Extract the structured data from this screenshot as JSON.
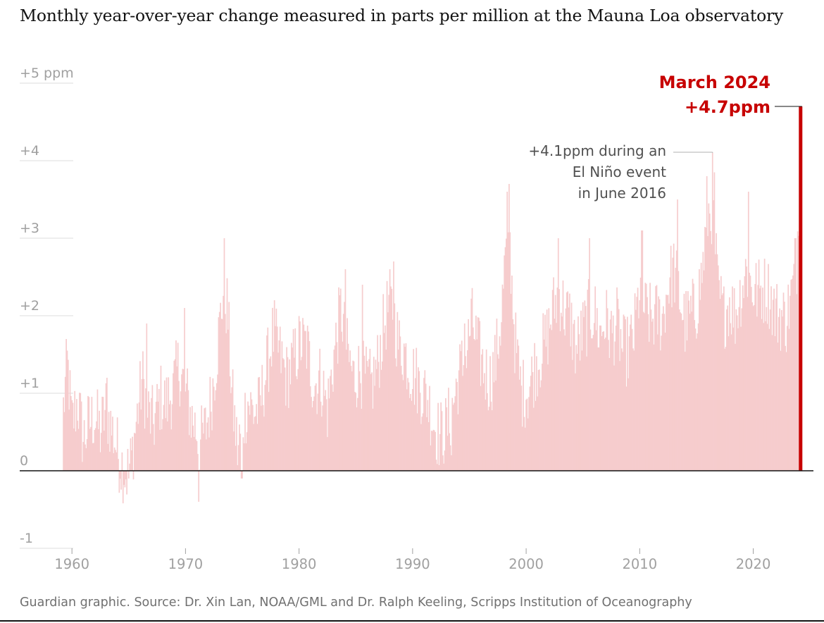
{
  "title": "Monthly year-over-year change measured in parts per million at the Mauna Loa observatory",
  "source": "Guardian graphic. Source: Dr. Xin Lan, NOAA/GML and Dr. Ralph Keeling, Scripps Institution of Oceanography",
  "colors": {
    "bar": "#f6cccd",
    "highlight": "#c70000",
    "grid": "#dcdcdc",
    "axis": "#121212",
    "tick_text": "#a0a0a0",
    "annotation_text": "#505050"
  },
  "chart_data": {
    "type": "bar",
    "title": "Monthly year-over-year change measured in parts per million at the Mauna Loa observatory",
    "xlabel": "",
    "ylabel": "",
    "xlim": [
      1955.4,
      2025.3
    ],
    "ylim": [
      -1,
      5
    ],
    "grid": true,
    "x_ticks": [
      1960,
      1970,
      1980,
      1990,
      2000,
      2010,
      2020
    ],
    "x_tick_labels": [
      "1960",
      "1970",
      "1980",
      "1990",
      "2000",
      "2010",
      "2020"
    ],
    "y_ticks": [
      5,
      4,
      3,
      2,
      1,
      0,
      -1
    ],
    "y_tick_labels": [
      "+5 ppm",
      "+4",
      "+3",
      "+2",
      "+1",
      "0",
      "-1"
    ],
    "x_start": 1959.25,
    "x_step": 0.08333,
    "keypoints": [
      [
        1959.25,
        0.8
      ],
      [
        1959.6,
        1.4
      ],
      [
        1960.0,
        0.6
      ],
      [
        1960.5,
        0.9
      ],
      [
        1961.0,
        0.4
      ],
      [
        1961.5,
        0.6
      ],
      [
        1962.0,
        0.7
      ],
      [
        1962.5,
        0.5
      ],
      [
        1963.0,
        0.8
      ],
      [
        1963.6,
        0.5
      ],
      [
        1964.2,
        0.15
      ],
      [
        1964.8,
        -0.05
      ],
      [
        1965.2,
        0.1
      ],
      [
        1965.6,
        0.55
      ],
      [
        1966.2,
        1.2
      ],
      [
        1966.7,
        0.75
      ],
      [
        1967.2,
        0.6
      ],
      [
        1967.8,
        0.95
      ],
      [
        1968.3,
        0.85
      ],
      [
        1968.9,
        1.05
      ],
      [
        1969.4,
        1.35
      ],
      [
        1969.9,
        1.1
      ],
      [
        1970.5,
        0.7
      ],
      [
        1970.9,
        0.55
      ],
      [
        1971.3,
        0.35
      ],
      [
        1971.8,
        0.55
      ],
      [
        1972.3,
        0.95
      ],
      [
        1972.8,
        1.55
      ],
      [
        1973.3,
        2.3
      ],
      [
        1973.7,
        2.1
      ],
      [
        1974.1,
        0.95
      ],
      [
        1974.6,
        0.25
      ],
      [
        1975.0,
        0.6
      ],
      [
        1975.5,
        0.9
      ],
      [
        1976.0,
        0.75
      ],
      [
        1976.5,
        0.8
      ],
      [
        1977.0,
        1.2
      ],
      [
        1977.7,
        1.75
      ],
      [
        1978.3,
        1.5
      ],
      [
        1978.9,
        1.2
      ],
      [
        1979.5,
        1.4
      ],
      [
        1980.1,
        1.65
      ],
      [
        1980.7,
        1.6
      ],
      [
        1981.3,
        1.1
      ],
      [
        1981.9,
        1.2
      ],
      [
        1982.5,
        0.8
      ],
      [
        1983.1,
        1.5
      ],
      [
        1983.7,
        2.1
      ],
      [
        1984.2,
        1.55
      ],
      [
        1984.8,
        1.2
      ],
      [
        1985.4,
        1.3
      ],
      [
        1985.9,
        1.15
      ],
      [
        1986.4,
        1.1
      ],
      [
        1986.9,
        1.35
      ],
      [
        1987.4,
        1.8
      ],
      [
        1987.9,
        2.15
      ],
      [
        1988.3,
        2.05
      ],
      [
        1988.8,
        1.6
      ],
      [
        1989.3,
        1.55
      ],
      [
        1989.8,
        1.3
      ],
      [
        1990.3,
        1.2
      ],
      [
        1990.8,
        1.05
      ],
      [
        1991.3,
        0.95
      ],
      [
        1991.9,
        0.6
      ],
      [
        1992.4,
        0.45
      ],
      [
        1993.0,
        0.55
      ],
      [
        1993.5,
        0.8
      ],
      [
        1994.1,
        1.25
      ],
      [
        1994.7,
        1.45
      ],
      [
        1995.2,
        1.95
      ],
      [
        1995.8,
        1.55
      ],
      [
        1996.3,
        1.3
      ],
      [
        1996.8,
        1.15
      ],
      [
        1997.3,
        1.4
      ],
      [
        1997.8,
        1.95
      ],
      [
        1998.2,
        2.8
      ],
      [
        1998.6,
        2.85
      ],
      [
        1999.0,
        1.7
      ],
      [
        1999.6,
        1.0
      ],
      [
        2000.2,
        1.05
      ],
      [
        2000.8,
        1.35
      ],
      [
        2001.3,
        1.5
      ],
      [
        2001.8,
        1.7
      ],
      [
        2002.4,
        2.1
      ],
      [
        2002.9,
        2.3
      ],
      [
        2003.4,
        2.05
      ],
      [
        2003.9,
        1.95
      ],
      [
        2004.4,
        1.55
      ],
      [
        2004.9,
        1.75
      ],
      [
        2005.5,
        2.0
      ],
      [
        2006.0,
        2.05
      ],
      [
        2006.5,
        1.75
      ],
      [
        2007.0,
        1.95
      ],
      [
        2007.5,
        1.75
      ],
      [
        2008.0,
        1.9
      ],
      [
        2008.5,
        1.55
      ],
      [
        2009.0,
        1.55
      ],
      [
        2009.5,
        1.75
      ],
      [
        2010.0,
        2.35
      ],
      [
        2010.5,
        2.05
      ],
      [
        2011.0,
        1.95
      ],
      [
        2011.5,
        2.0
      ],
      [
        2012.0,
        1.95
      ],
      [
        2012.5,
        2.4
      ],
      [
        2013.0,
        2.6
      ],
      [
        2013.5,
        2.25
      ],
      [
        2014.0,
        1.9
      ],
      [
        2014.5,
        2.0
      ],
      [
        2015.0,
        2.1
      ],
      [
        2015.5,
        2.55
      ],
      [
        2016.0,
        3.3
      ],
      [
        2016.45,
        3.4
      ],
      [
        2016.9,
        2.3
      ],
      [
        2017.4,
        2.0
      ],
      [
        2017.9,
        2.2
      ],
      [
        2018.4,
        2.0
      ],
      [
        2018.9,
        2.3
      ],
      [
        2019.4,
        2.6
      ],
      [
        2019.9,
        2.35
      ],
      [
        2020.4,
        2.3
      ],
      [
        2020.9,
        2.35
      ],
      [
        2021.4,
        2.3
      ],
      [
        2021.9,
        2.05
      ],
      [
        2022.4,
        2.0
      ],
      [
        2022.9,
        1.95
      ],
      [
        2023.4,
        2.3
      ],
      [
        2023.8,
        2.6
      ],
      [
        2024.0,
        3.4
      ],
      [
        2024.15,
        3.9
      ]
    ],
    "spikes": [
      [
        1959.5,
        1.7
      ],
      [
        1959.58,
        1.55
      ],
      [
        1963.1,
        1.2
      ],
      [
        1965.0,
        -0.1
      ],
      [
        1966.6,
        1.9
      ],
      [
        1969.9,
        2.1
      ],
      [
        1971.15,
        -0.4
      ],
      [
        1973.4,
        3.0
      ],
      [
        1974.95,
        -0.1
      ],
      [
        1977.8,
        2.2
      ],
      [
        1984.1,
        2.6
      ],
      [
        1985.6,
        2.4
      ],
      [
        1988.0,
        2.6
      ],
      [
        1988.35,
        2.7
      ],
      [
        1993.4,
        0.2
      ],
      [
        1994.6,
        1.9
      ],
      [
        1998.3,
        3.6
      ],
      [
        1998.5,
        3.7
      ],
      [
        2002.8,
        3.0
      ],
      [
        2005.6,
        3.0
      ],
      [
        2010.2,
        3.1
      ],
      [
        2013.3,
        3.5
      ],
      [
        2015.9,
        3.8
      ],
      [
        2016.4,
        4.1
      ],
      [
        2016.55,
        3.85
      ],
      [
        2019.6,
        3.6
      ],
      [
        2023.7,
        3.0
      ]
    ],
    "highlight": {
      "label": "March 2024",
      "value_label": "+4.7ppm",
      "x": 2024.17,
      "y": 4.7
    },
    "annotations": [
      {
        "lines": [
          "+4.1ppm during an",
          "El Niño event",
          "in June 2016"
        ],
        "x": 2016.42,
        "y": 4.1
      }
    ]
  }
}
